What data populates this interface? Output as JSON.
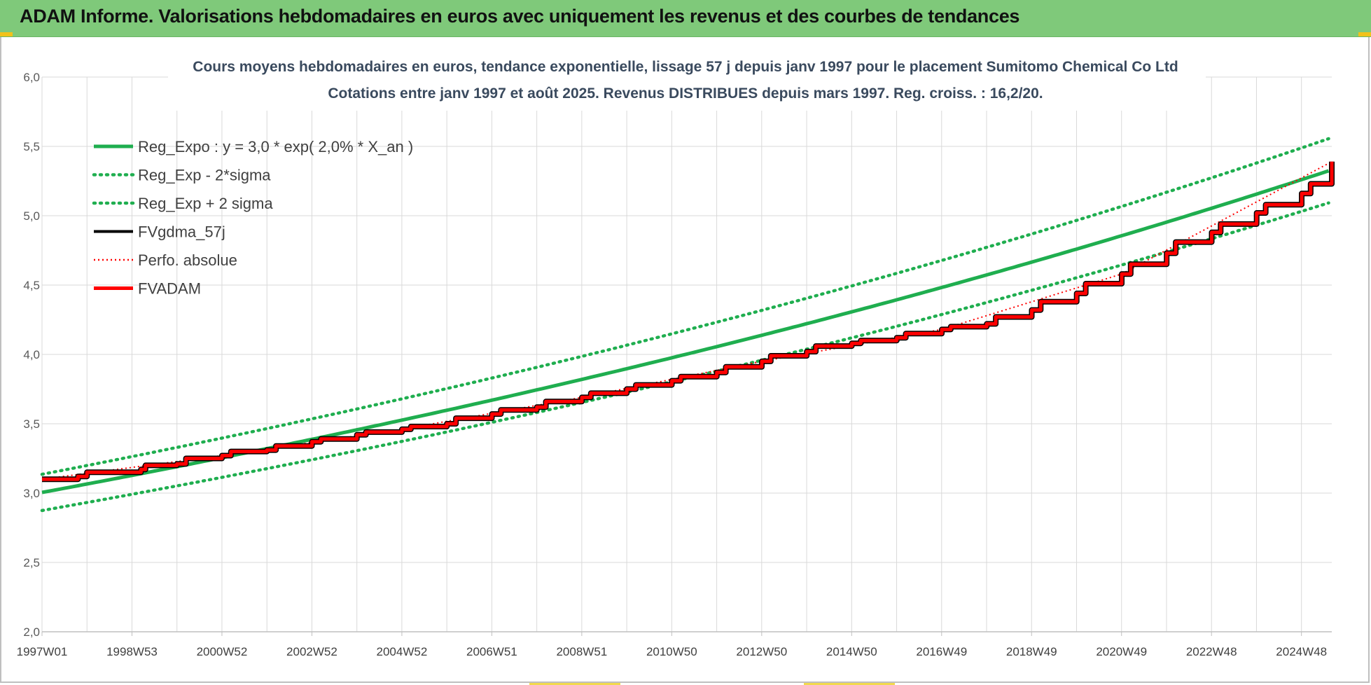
{
  "banner": {
    "title": "ADAM Informe. Valorisations hebdomadaires en euros avec uniquement les revenus et des courbes de tendances"
  },
  "colors": {
    "banner_bg": "#7fc97a",
    "trend_green": "#1fae4f",
    "fvadam_red": "#ff0000",
    "fvgdma_black": "#000000",
    "grid": "#d9d9d9"
  },
  "chart_data": {
    "type": "line",
    "title_line1": "Cours moyens hebdomadaires en euros, tendance exponentielle, lissage 57 j depuis janv 1997 pour le placement Sumitomo Chemical Co Ltd",
    "title_line2": "Cotations entre janv 1997 et août 2025.  Revenus DISTRIBUES depuis mars 1997. Reg. croiss. : 16,2/20.",
    "ylim": [
      2.0,
      6.0
    ],
    "ytick_labels": [
      "2,0",
      "2,5",
      "3,0",
      "3,5",
      "4,0",
      "4,5",
      "5,0",
      "5,5",
      "6,0"
    ],
    "x_range_years": [
      1997.0,
      2025.67
    ],
    "xtick_labels": [
      "1997W01",
      "1998W53",
      "2000W52",
      "2002W52",
      "2004W52",
      "2006W51",
      "2008W51",
      "2010W50",
      "2012W50",
      "2014W50",
      "2016W49",
      "2018W49",
      "2020W49",
      "2022W48",
      "2024W48"
    ],
    "grid": true,
    "legend_position": "top-left",
    "regression": {
      "a": 3.0,
      "rate": 0.02
    },
    "series": [
      {
        "name": "Reg_Expo : y = 3,0 * exp( 2,0% *  X_an )",
        "style": "solid",
        "color": "#1fae4f",
        "x": [
          1997.0,
          2000.0,
          2003.0,
          2006.0,
          2009.0,
          2012.0,
          2015.0,
          2018.0,
          2021.0,
          2024.0,
          2025.67
        ],
        "values": [
          2.99,
          3.17,
          3.37,
          3.57,
          3.79,
          4.03,
          4.28,
          4.55,
          4.83,
          5.13,
          5.31
        ]
      },
      {
        "name": "Reg_Exp - 2*sigma",
        "style": "dotted",
        "color": "#1fae4f",
        "x": [
          1997.0,
          2000.0,
          2003.0,
          2006.0,
          2009.0,
          2012.0,
          2015.0,
          2018.0,
          2021.0,
          2024.0,
          2025.67
        ],
        "values": [
          2.86,
          3.04,
          3.23,
          3.43,
          3.64,
          3.87,
          4.11,
          4.36,
          4.63,
          4.92,
          5.09
        ]
      },
      {
        "name": "Reg_Exp + 2 sigma",
        "style": "dotted",
        "color": "#1fae4f",
        "x": [
          1997.0,
          2000.0,
          2003.0,
          2006.0,
          2009.0,
          2012.0,
          2015.0,
          2018.0,
          2021.0,
          2024.0,
          2025.67
        ],
        "values": [
          3.12,
          3.31,
          3.51,
          3.73,
          3.96,
          4.21,
          4.47,
          4.74,
          5.04,
          5.35,
          5.53
        ]
      },
      {
        "name": "FVgdma_57j",
        "style": "solid",
        "color": "#000000",
        "x": [
          1997.0,
          1997.8,
          1998.0,
          1999.2,
          1999.3,
          2000.0,
          2000.2,
          2001.0,
          2001.2,
          2002.0,
          2002.2,
          2003.0,
          2003.2,
          2004.0,
          2004.2,
          2005.0,
          2005.2,
          2006.0,
          2006.2,
          2007.0,
          2007.2,
          2008.0,
          2008.2,
          2009.0,
          2009.2,
          2010.0,
          2010.2,
          2011.0,
          2011.2,
          2012.0,
          2012.2,
          2013.0,
          2013.2,
          2014.0,
          2014.2,
          2015.0,
          2015.2,
          2016.0,
          2016.2,
          2017.0,
          2017.2,
          2018.0,
          2018.2,
          2019.0,
          2019.2,
          2020.0,
          2020.2,
          2021.0,
          2021.2,
          2022.0,
          2022.2,
          2023.0,
          2023.2,
          2024.0,
          2024.2,
          2025.0,
          2025.2,
          2025.67
        ],
        "values": [
          3.1,
          3.12,
          3.15,
          3.17,
          3.2,
          3.21,
          3.25,
          3.27,
          3.3,
          3.31,
          3.34,
          3.37,
          3.39,
          3.42,
          3.44,
          3.46,
          3.48,
          3.5,
          3.54,
          3.57,
          3.6,
          3.62,
          3.66,
          3.69,
          3.72,
          3.75,
          3.78,
          3.81,
          3.84,
          3.87,
          3.91,
          3.95,
          3.99,
          4.02,
          4.06,
          4.08,
          4.1,
          4.12,
          4.15,
          4.18,
          4.2,
          4.22,
          4.27,
          4.32,
          4.38,
          4.44,
          4.51,
          4.58,
          4.65,
          4.73,
          4.81,
          4.88,
          4.94,
          5.02,
          5.08,
          5.16,
          5.23,
          5.39
        ]
      },
      {
        "name": "Perfo. absolue",
        "style": "dotted",
        "color": "#ff0000",
        "x": [
          1997.0,
          2001.0,
          2005.0,
          2009.0,
          2013.0,
          2017.0,
          2021.0,
          2025.67
        ],
        "values": [
          3.1,
          3.27,
          3.46,
          3.69,
          3.95,
          4.18,
          4.58,
          5.39
        ]
      },
      {
        "name": "FVADAM",
        "style": "solid",
        "color": "#ff0000",
        "x": [
          1997.0,
          1997.8,
          1998.0,
          1999.2,
          1999.3,
          2000.0,
          2000.2,
          2001.0,
          2001.2,
          2002.0,
          2002.2,
          2003.0,
          2003.2,
          2004.0,
          2004.2,
          2005.0,
          2005.2,
          2006.0,
          2006.2,
          2007.0,
          2007.2,
          2008.0,
          2008.2,
          2009.0,
          2009.2,
          2010.0,
          2010.2,
          2011.0,
          2011.2,
          2012.0,
          2012.2,
          2013.0,
          2013.2,
          2014.0,
          2014.2,
          2015.0,
          2015.2,
          2016.0,
          2016.2,
          2017.0,
          2017.2,
          2018.0,
          2018.2,
          2019.0,
          2019.2,
          2020.0,
          2020.2,
          2021.0,
          2021.2,
          2022.0,
          2022.2,
          2023.0,
          2023.2,
          2024.0,
          2024.2,
          2025.0,
          2025.2,
          2025.67
        ],
        "values": [
          3.1,
          3.12,
          3.15,
          3.17,
          3.2,
          3.21,
          3.25,
          3.27,
          3.3,
          3.31,
          3.34,
          3.37,
          3.39,
          3.42,
          3.44,
          3.46,
          3.48,
          3.5,
          3.54,
          3.57,
          3.6,
          3.62,
          3.66,
          3.69,
          3.72,
          3.75,
          3.78,
          3.81,
          3.84,
          3.87,
          3.91,
          3.95,
          3.99,
          4.02,
          4.06,
          4.08,
          4.1,
          4.12,
          4.15,
          4.18,
          4.2,
          4.22,
          4.27,
          4.32,
          4.38,
          4.44,
          4.51,
          4.58,
          4.65,
          4.73,
          4.81,
          4.88,
          4.94,
          5.02,
          5.08,
          5.16,
          5.23,
          5.39
        ]
      }
    ]
  }
}
